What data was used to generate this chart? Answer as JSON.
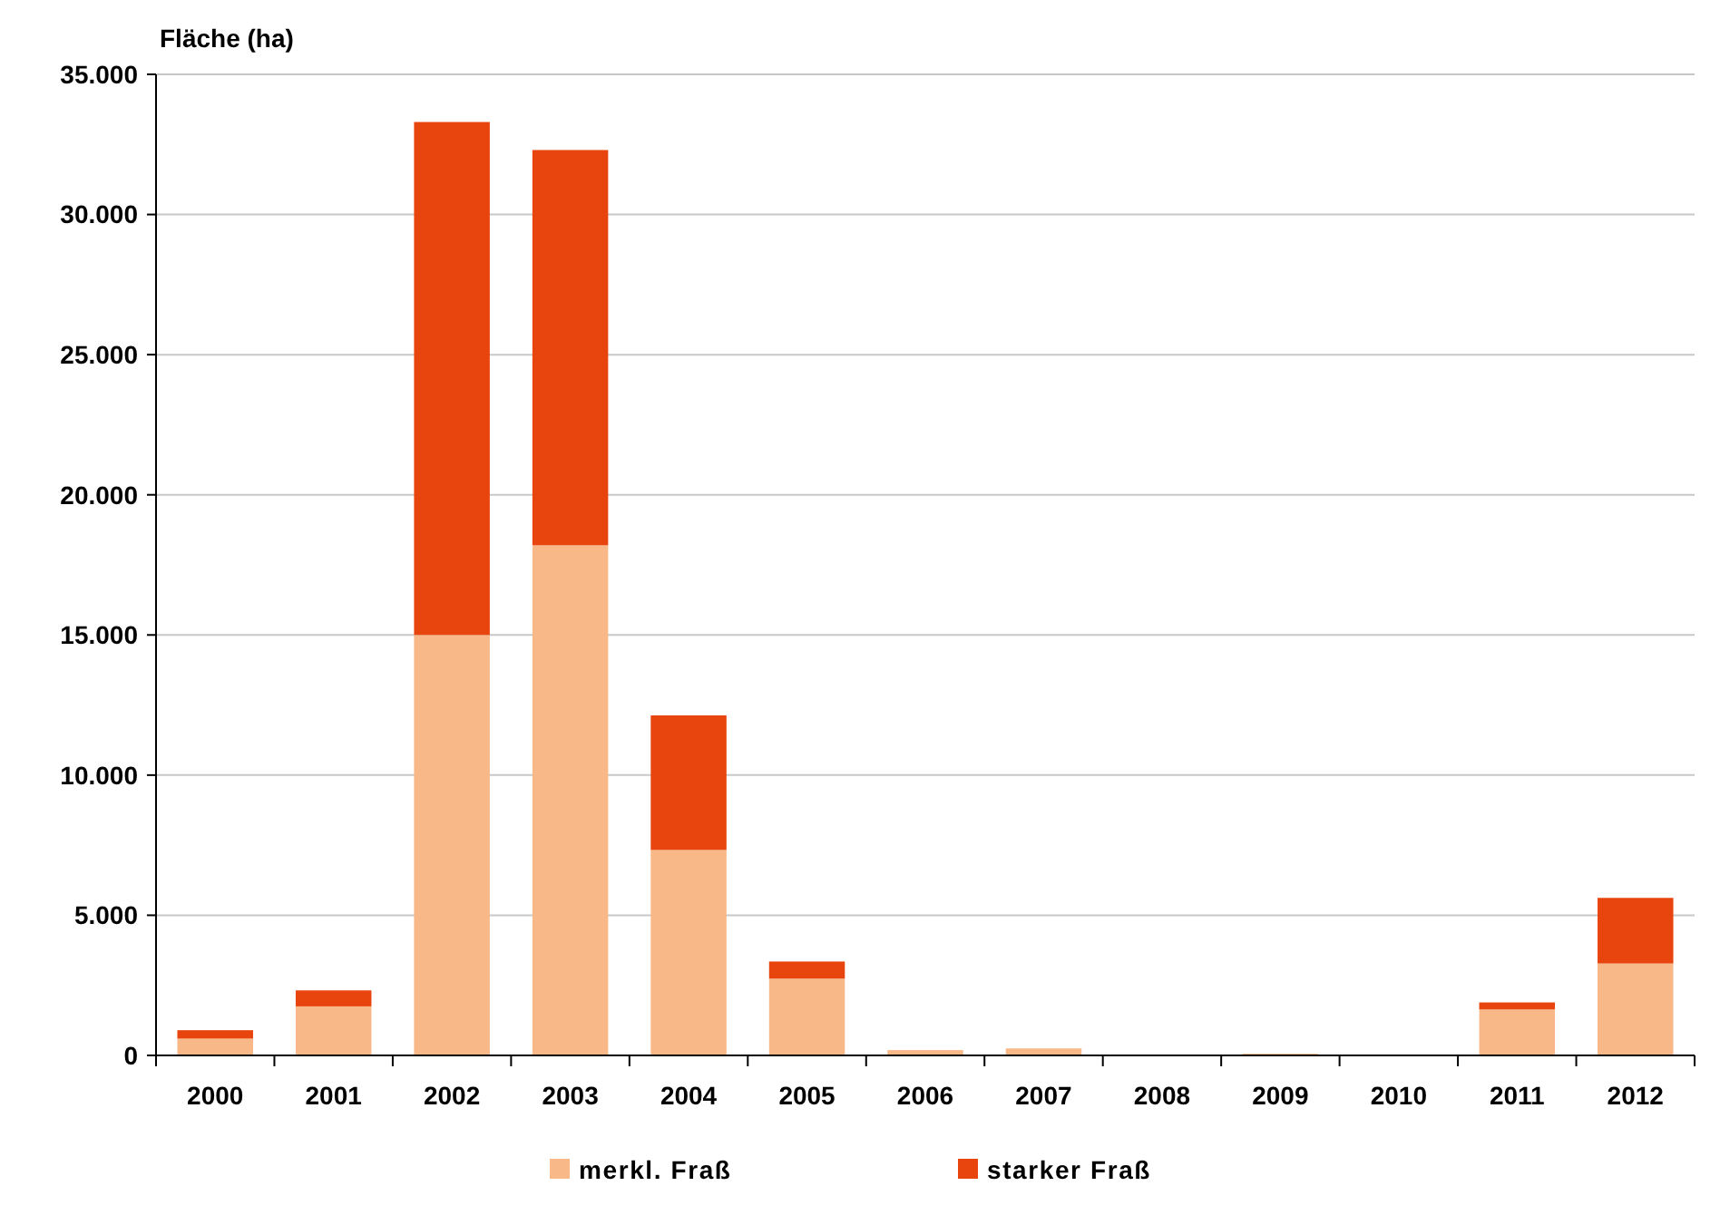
{
  "chart_data": {
    "type": "bar",
    "stacked": true,
    "ylabel": "Fläche (ha)",
    "categories": [
      "2000",
      "2001",
      "2002",
      "2003",
      "2004",
      "2005",
      "2006",
      "2007",
      "2008",
      "2009",
      "2010",
      "2011",
      "2012"
    ],
    "series": [
      {
        "name": "merkl. Fraß",
        "color": "#f8b888",
        "values": [
          600,
          1750,
          15000,
          18200,
          7330,
          2740,
          190,
          250,
          0,
          60,
          0,
          1640,
          3280
        ]
      },
      {
        "name": "starker Fraß",
        "color": "#e8450e",
        "values": [
          300,
          570,
          18300,
          14100,
          4800,
          610,
          0,
          0,
          0,
          0,
          0,
          250,
          2340
        ]
      }
    ],
    "ylim": [
      0,
      35000
    ],
    "yticks": [
      0,
      {
        "value": 5000,
        "label": "5.000"
      },
      {
        "value": 10000,
        "label": "10.000"
      },
      {
        "value": 15000,
        "label": "15.000"
      },
      {
        "value": 20000,
        "label": "20.000"
      },
      {
        "value": 25000,
        "label": "25.000"
      },
      {
        "value": 30000,
        "label": "30.000"
      },
      {
        "value": 35000,
        "label": "35.000"
      }
    ],
    "grid": "y",
    "legend": "bottom"
  }
}
